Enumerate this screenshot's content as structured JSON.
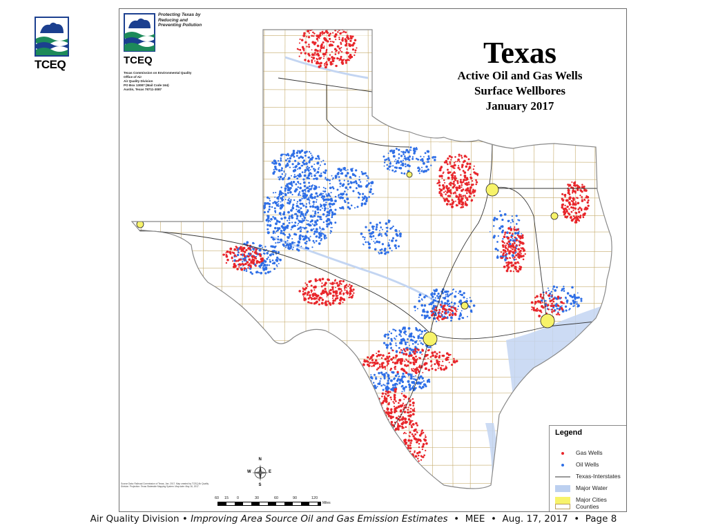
{
  "logo": {
    "text": "TCEQ"
  },
  "map": {
    "title": "Texas",
    "subtitle_lines": [
      "Active Oil and Gas Wells",
      "Surface Wellbores",
      "January 2017"
    ],
    "agency": {
      "logo_text": "TCEQ",
      "tagline": "Protecting Texas by\nReducing and\nPreventing Pollution",
      "address_lines": [
        "Texas Commission on Environmental Quality",
        "Office of Air",
        "Air Quality Division",
        "PO Box 13087 (Mail Code 164)",
        "Austin, Texas 78711-3087"
      ]
    },
    "legend": {
      "title": "Legend",
      "items": [
        {
          "label": "Gas Wells",
          "symbol": "dot",
          "color": "#e8262b"
        },
        {
          "label": "Oil Wells",
          "symbol": "dot",
          "color": "#2f6fe6"
        },
        {
          "label": "Texas-Interstates",
          "symbol": "line",
          "color": "#333333"
        },
        {
          "label": "Major Water",
          "symbol": "fill",
          "color": "#bcd0f0"
        },
        {
          "label": "Major Cities",
          "symbol": "fill",
          "color": "#f7f36a"
        },
        {
          "label": "Counties",
          "symbol": "outline",
          "color": "#b89c5a"
        }
      ]
    },
    "scale": {
      "ticks": [
        "60",
        "15",
        "0",
        "30",
        "60",
        "90",
        "120"
      ],
      "unit": "Miles"
    },
    "compass": {
      "n": "N",
      "s": "S",
      "e": "E",
      "w": "W"
    },
    "metadata": "Source Data: Railroad Commission of Texas, Jan. 2017. Map created by TCEQ Air Quality Division. Projection: Texas Statewide Mapping System. Map date: May 16, 2017.",
    "colors": {
      "gas": "#e8262b",
      "oil": "#2f6fe6",
      "county_lines": "#c4aa6a",
      "water": "#c3d5f2",
      "cities": "#f7f36a",
      "state_outline": "#888888"
    }
  },
  "footer": {
    "org": "Air Quality Division",
    "title": "Improving Area Source Oil and Gas Emission Estimates",
    "event": "MEE",
    "date": "Aug. 17, 2017",
    "page": "Page 8"
  }
}
